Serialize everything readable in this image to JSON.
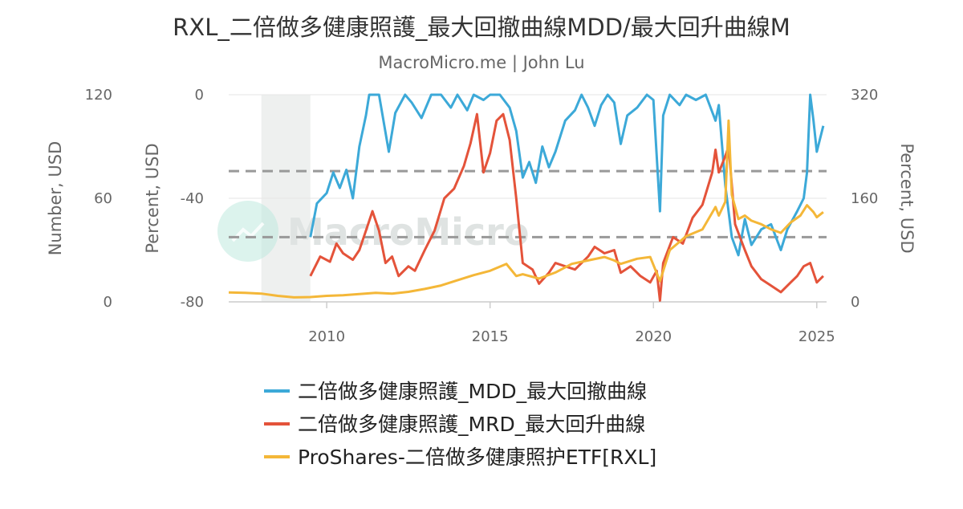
{
  "chart_data": {
    "type": "line",
    "title": "RXL_二倍做多健康照護_最大回撤曲線MDD/最大回升曲線M",
    "subtitle": "MacroMicro.me | John Lu",
    "watermark": "MacroMicro",
    "xlim": [
      2007.0,
      2025.3
    ],
    "x_ticks": [
      2010,
      2015,
      2020,
      2025
    ],
    "recession_band": [
      2008.0,
      2009.5
    ],
    "reference_lines": [
      -29.5,
      -55
    ],
    "axes": {
      "left_outer": {
        "title": "Number, USD",
        "ylim": [
          0,
          120
        ],
        "ticks": [
          "0",
          "60",
          "120"
        ]
      },
      "left_inner": {
        "title": "Percent, USD",
        "ylim": [
          -80,
          0
        ],
        "ticks": [
          "-80",
          "-40",
          "0"
        ]
      },
      "right": {
        "title": "Percent, USD",
        "ylim": [
          0,
          320
        ],
        "ticks": [
          "0",
          "160",
          "320"
        ]
      }
    },
    "series": [
      {
        "name": "二倍做多健康照護_MDD_最大回撤曲線",
        "color": "#3ca9d8",
        "axis": "left_inner",
        "points": [
          [
            2009.5,
            -55
          ],
          [
            2009.7,
            -42
          ],
          [
            2010.0,
            -38
          ],
          [
            2010.2,
            -30
          ],
          [
            2010.4,
            -36
          ],
          [
            2010.6,
            -29
          ],
          [
            2010.8,
            -40
          ],
          [
            2011.0,
            -20
          ],
          [
            2011.2,
            -8
          ],
          [
            2011.3,
            0
          ],
          [
            2011.6,
            0
          ],
          [
            2011.9,
            -22
          ],
          [
            2012.1,
            -7
          ],
          [
            2012.4,
            0
          ],
          [
            2012.6,
            -3
          ],
          [
            2012.9,
            -9
          ],
          [
            2013.2,
            0
          ],
          [
            2013.5,
            0
          ],
          [
            2013.8,
            -5
          ],
          [
            2014.0,
            0
          ],
          [
            2014.3,
            -6
          ],
          [
            2014.5,
            0
          ],
          [
            2014.8,
            -2
          ],
          [
            2015.0,
            0
          ],
          [
            2015.3,
            0
          ],
          [
            2015.6,
            -5
          ],
          [
            2015.8,
            -14
          ],
          [
            2016.0,
            -32
          ],
          [
            2016.2,
            -26
          ],
          [
            2016.4,
            -34
          ],
          [
            2016.6,
            -20
          ],
          [
            2016.8,
            -28
          ],
          [
            2017.0,
            -22
          ],
          [
            2017.3,
            -10
          ],
          [
            2017.6,
            -6
          ],
          [
            2017.8,
            0
          ],
          [
            2018.0,
            -5
          ],
          [
            2018.2,
            -12
          ],
          [
            2018.4,
            -4
          ],
          [
            2018.6,
            0
          ],
          [
            2018.8,
            -3
          ],
          [
            2019.0,
            -19
          ],
          [
            2019.2,
            -8
          ],
          [
            2019.5,
            -5
          ],
          [
            2019.8,
            0
          ],
          [
            2020.0,
            -2
          ],
          [
            2020.2,
            -45
          ],
          [
            2020.3,
            -8
          ],
          [
            2020.5,
            0
          ],
          [
            2020.8,
            -4
          ],
          [
            2021.0,
            0
          ],
          [
            2021.3,
            -2
          ],
          [
            2021.6,
            0
          ],
          [
            2021.9,
            -10
          ],
          [
            2022.0,
            -4
          ],
          [
            2022.2,
            -35
          ],
          [
            2022.4,
            -55
          ],
          [
            2022.6,
            -62
          ],
          [
            2022.8,
            -48
          ],
          [
            2023.0,
            -58
          ],
          [
            2023.3,
            -52
          ],
          [
            2023.6,
            -50
          ],
          [
            2023.9,
            -60
          ],
          [
            2024.1,
            -52
          ],
          [
            2024.4,
            -45
          ],
          [
            2024.6,
            -40
          ],
          [
            2024.7,
            -30
          ],
          [
            2024.8,
            0
          ],
          [
            2024.9,
            -10
          ],
          [
            2025.0,
            -22
          ],
          [
            2025.2,
            -12
          ]
        ]
      },
      {
        "name": "二倍做多健康照護_MRD_最大回升曲線",
        "color": "#e4533a",
        "axis": "right",
        "points": [
          [
            2009.5,
            40
          ],
          [
            2009.8,
            70
          ],
          [
            2010.1,
            62
          ],
          [
            2010.3,
            90
          ],
          [
            2010.5,
            75
          ],
          [
            2010.8,
            65
          ],
          [
            2011.0,
            80
          ],
          [
            2011.2,
            110
          ],
          [
            2011.4,
            140
          ],
          [
            2011.6,
            110
          ],
          [
            2011.8,
            60
          ],
          [
            2012.0,
            70
          ],
          [
            2012.2,
            40
          ],
          [
            2012.5,
            55
          ],
          [
            2012.7,
            48
          ],
          [
            2013.0,
            80
          ],
          [
            2013.3,
            110
          ],
          [
            2013.6,
            160
          ],
          [
            2013.9,
            175
          ],
          [
            2014.2,
            210
          ],
          [
            2014.4,
            245
          ],
          [
            2014.6,
            290
          ],
          [
            2014.8,
            200
          ],
          [
            2015.0,
            230
          ],
          [
            2015.2,
            280
          ],
          [
            2015.4,
            290
          ],
          [
            2015.6,
            250
          ],
          [
            2015.8,
            160
          ],
          [
            2016.0,
            60
          ],
          [
            2016.3,
            50
          ],
          [
            2016.5,
            28
          ],
          [
            2016.8,
            45
          ],
          [
            2017.0,
            60
          ],
          [
            2017.3,
            55
          ],
          [
            2017.6,
            50
          ],
          [
            2018.0,
            70
          ],
          [
            2018.2,
            85
          ],
          [
            2018.5,
            75
          ],
          [
            2018.8,
            80
          ],
          [
            2019.0,
            45
          ],
          [
            2019.3,
            55
          ],
          [
            2019.6,
            40
          ],
          [
            2019.9,
            30
          ],
          [
            2020.1,
            48
          ],
          [
            2020.2,
            2
          ],
          [
            2020.3,
            60
          ],
          [
            2020.6,
            100
          ],
          [
            2020.9,
            90
          ],
          [
            2021.2,
            130
          ],
          [
            2021.5,
            150
          ],
          [
            2021.8,
            200
          ],
          [
            2021.9,
            235
          ],
          [
            2022.0,
            200
          ],
          [
            2022.2,
            225
          ],
          [
            2022.3,
            240
          ],
          [
            2022.5,
            120
          ],
          [
            2022.8,
            80
          ],
          [
            2023.0,
            55
          ],
          [
            2023.3,
            35
          ],
          [
            2023.6,
            25
          ],
          [
            2023.9,
            15
          ],
          [
            2024.2,
            30
          ],
          [
            2024.4,
            40
          ],
          [
            2024.6,
            55
          ],
          [
            2024.8,
            60
          ],
          [
            2025.0,
            30
          ],
          [
            2025.2,
            40
          ]
        ]
      },
      {
        "name": "ProShares-二倍做多健康照护ETF[RXL]",
        "color": "#f4b738",
        "axis": "left_outer",
        "points": [
          [
            2007.0,
            5.5
          ],
          [
            2007.5,
            5.2
          ],
          [
            2008.0,
            4.8
          ],
          [
            2008.5,
            3.5
          ],
          [
            2009.0,
            2.6
          ],
          [
            2009.5,
            2.8
          ],
          [
            2010.0,
            3.5
          ],
          [
            2010.5,
            3.8
          ],
          [
            2011.0,
            4.5
          ],
          [
            2011.5,
            5.2
          ],
          [
            2012.0,
            4.8
          ],
          [
            2012.5,
            5.8
          ],
          [
            2013.0,
            7.5
          ],
          [
            2013.5,
            9.5
          ],
          [
            2014.0,
            12.5
          ],
          [
            2014.5,
            15.5
          ],
          [
            2015.0,
            18
          ],
          [
            2015.5,
            22
          ],
          [
            2015.8,
            15
          ],
          [
            2016.0,
            16
          ],
          [
            2016.5,
            13.5
          ],
          [
            2017.0,
            17
          ],
          [
            2017.5,
            22
          ],
          [
            2018.0,
            24
          ],
          [
            2018.5,
            26
          ],
          [
            2018.8,
            24
          ],
          [
            2019.0,
            22
          ],
          [
            2019.5,
            25
          ],
          [
            2019.9,
            26
          ],
          [
            2020.2,
            12
          ],
          [
            2020.5,
            30
          ],
          [
            2021.0,
            38
          ],
          [
            2021.5,
            42
          ],
          [
            2021.9,
            55
          ],
          [
            2022.0,
            50
          ],
          [
            2022.2,
            58
          ],
          [
            2022.3,
            105
          ],
          [
            2022.4,
            62
          ],
          [
            2022.6,
            48
          ],
          [
            2022.8,
            50
          ],
          [
            2023.0,
            47
          ],
          [
            2023.3,
            45
          ],
          [
            2023.6,
            42
          ],
          [
            2023.9,
            40
          ],
          [
            2024.2,
            46
          ],
          [
            2024.5,
            50
          ],
          [
            2024.7,
            56
          ],
          [
            2024.9,
            52
          ],
          [
            2025.0,
            49
          ],
          [
            2025.2,
            52
          ]
        ]
      }
    ],
    "legend": {
      "position": "bottom"
    }
  }
}
